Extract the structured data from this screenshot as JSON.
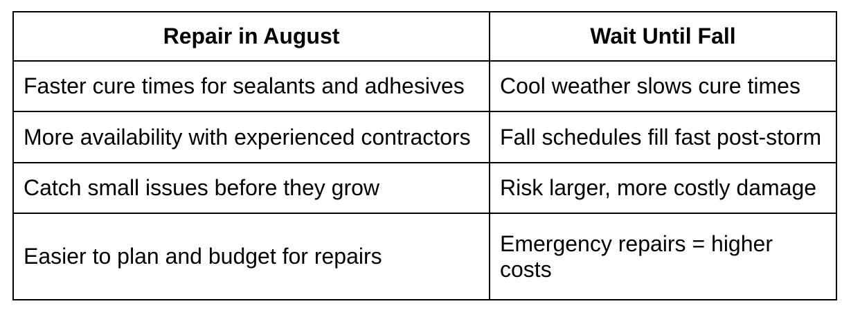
{
  "page": {
    "background": "#ffffff"
  },
  "table": {
    "border_color": "#000000",
    "text_color": "#000000",
    "headers": [
      "Repair in August",
      "Wait Until Fall"
    ],
    "rows": [
      [
        "Faster cure times for sealants and adhesives",
        "Cool weather slows cure times"
      ],
      [
        "More availability with experienced contractors",
        "Fall schedules fill fast post-storm"
      ],
      [
        "Catch small issues before they grow",
        "Risk larger, more costly damage"
      ],
      [
        "Easier to plan and budget for repairs",
        "Emergency repairs = higher costs"
      ]
    ]
  }
}
